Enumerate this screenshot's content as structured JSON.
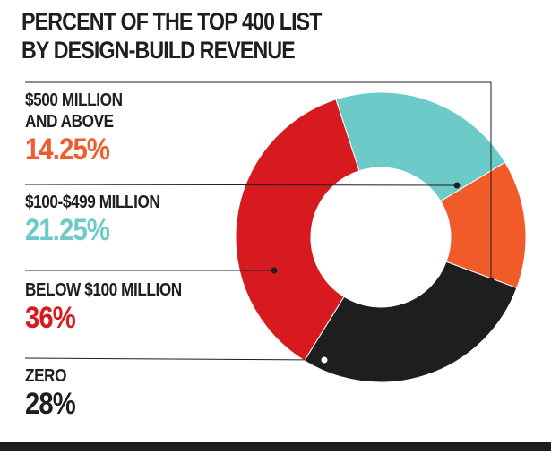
{
  "title_lines": [
    "PERCENT OF THE TOP 400 LIST",
    "BY DESIGN-BUILD REVENUE"
  ],
  "chart_data": {
    "type": "pie",
    "donut": true,
    "title": "PERCENT OF THE TOP 400 LIST BY DESIGN-BUILD REVENUE",
    "categories": [
      "$500 MILLION AND ABOVE",
      "$100-$499 MILLION",
      "BELOW $100 MILLION",
      "ZERO"
    ],
    "category_lines": [
      [
        "$500 MILLION",
        "AND ABOVE"
      ],
      [
        "$100-$499 MILLION"
      ],
      [
        "BELOW $100 MILLION"
      ],
      [
        "ZERO"
      ]
    ],
    "values": [
      14.25,
      21.25,
      36,
      28
    ],
    "value_labels": [
      "14.25%",
      "21.25%",
      "36%",
      "28%"
    ],
    "colors": [
      "#f15a29",
      "#6ccbc9",
      "#d71920",
      "#1e1e1e"
    ],
    "label_colors": [
      "#f15a29",
      "#6ccbc9",
      "#d71920",
      "#1e1e1e"
    ],
    "legend": "left"
  }
}
